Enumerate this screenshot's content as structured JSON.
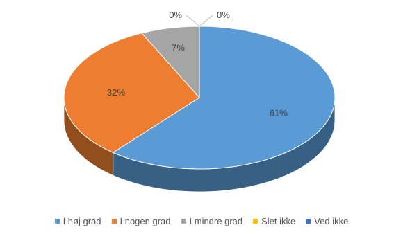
{
  "chart_data": {
    "type": "pie",
    "style": "3d",
    "categories": [
      "I høj grad",
      "I nogen grad",
      "I mindre grad",
      "Slet ikke",
      "Ved ikke"
    ],
    "values": [
      61,
      32,
      7,
      0,
      0
    ],
    "data_labels": [
      "61%",
      "32%",
      "7%",
      "0%",
      "0%"
    ],
    "colors": [
      "#5b9bd5",
      "#ed7d31",
      "#a5a5a5",
      "#ffc000",
      "#4472c4"
    ],
    "legend_position": "bottom"
  }
}
